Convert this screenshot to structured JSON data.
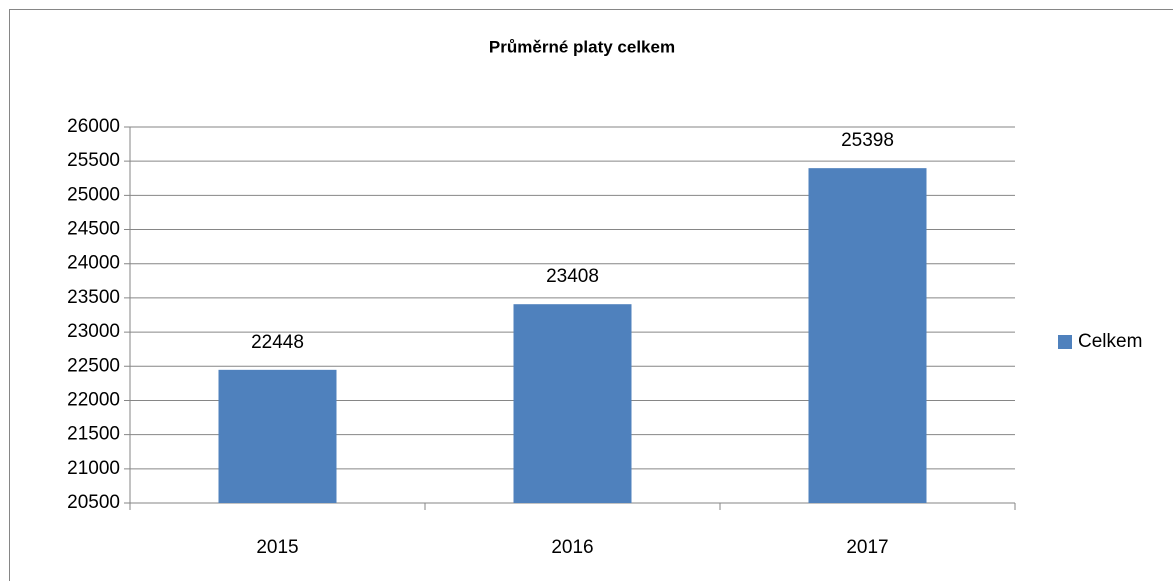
{
  "chart_data": {
    "type": "bar",
    "title": "Průměrné platy celkem",
    "categories": [
      "2015",
      "2016",
      "2017"
    ],
    "series": [
      {
        "name": "Celkem",
        "color": "#4f81bd",
        "values": [
          22448,
          23408,
          25398
        ]
      }
    ],
    "ylim": [
      20500,
      26000
    ],
    "yticks": [
      20500,
      21000,
      21500,
      22000,
      22500,
      23000,
      23500,
      24000,
      24500,
      25000,
      25500,
      26000
    ],
    "grid": true,
    "legend": "right"
  }
}
